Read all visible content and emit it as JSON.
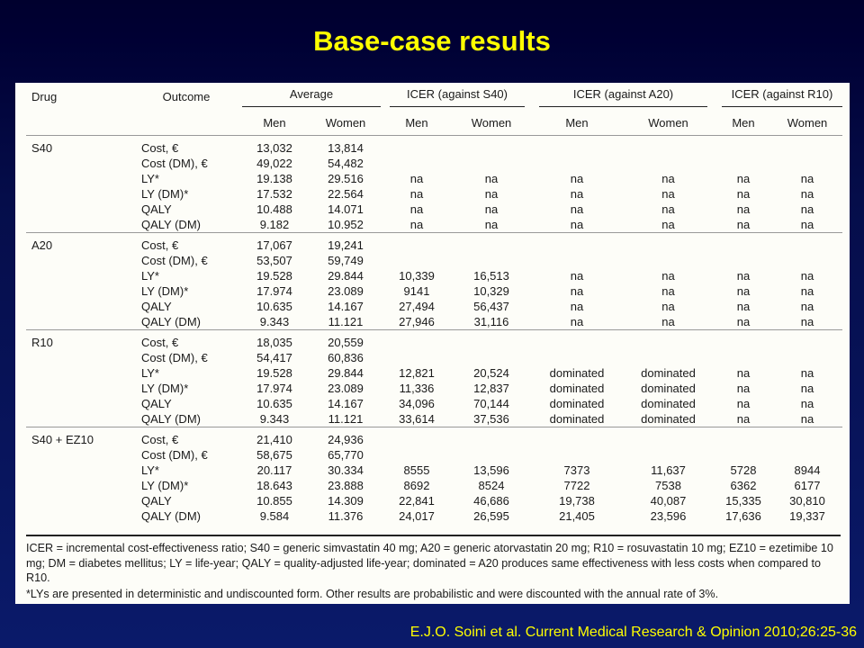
{
  "slide": {
    "title": "Base-case results",
    "citation": "E.J.O. Soini et al. Current Medical Research & Opinion 2010;26:25-36"
  },
  "table": {
    "headers": {
      "drug": "Drug",
      "outcome": "Outcome",
      "average": "Average",
      "icer_s40": "ICER (against S40)",
      "icer_a20": "ICER (against A20)",
      "icer_r10": "ICER (against R10)",
      "men": "Men",
      "women": "Women"
    },
    "groups": [
      {
        "drug": "S40",
        "rows": [
          {
            "outcome": "Cost, €",
            "cells": [
              "13,032",
              "13,814",
              "",
              "",
              "",
              "",
              "",
              ""
            ]
          },
          {
            "outcome": "Cost (DM), €",
            "cells": [
              "49,022",
              "54,482",
              "",
              "",
              "",
              "",
              "",
              ""
            ]
          },
          {
            "outcome": "LY*",
            "cells": [
              "19.138",
              "29.516",
              "na",
              "na",
              "na",
              "na",
              "na",
              "na"
            ]
          },
          {
            "outcome": "LY (DM)*",
            "cells": [
              "17.532",
              "22.564",
              "na",
              "na",
              "na",
              "na",
              "na",
              "na"
            ]
          },
          {
            "outcome": "QALY",
            "cells": [
              "10.488",
              "14.071",
              "na",
              "na",
              "na",
              "na",
              "na",
              "na"
            ]
          },
          {
            "outcome": "QALY (DM)",
            "cells": [
              "9.182",
              "10.952",
              "na",
              "na",
              "na",
              "na",
              "na",
              "na"
            ]
          }
        ]
      },
      {
        "drug": "A20",
        "rows": [
          {
            "outcome": "Cost, €",
            "cells": [
              "17,067",
              "19,241",
              "",
              "",
              "",
              "",
              "",
              ""
            ]
          },
          {
            "outcome": "Cost (DM), €",
            "cells": [
              "53,507",
              "59,749",
              "",
              "",
              "",
              "",
              "",
              ""
            ]
          },
          {
            "outcome": "LY*",
            "cells": [
              "19.528",
              "29.844",
              "10,339",
              "16,513",
              "na",
              "na",
              "na",
              "na"
            ]
          },
          {
            "outcome": "LY (DM)*",
            "cells": [
              "17.974",
              "23.089",
              "9141",
              "10,329",
              "na",
              "na",
              "na",
              "na"
            ]
          },
          {
            "outcome": "QALY",
            "cells": [
              "10.635",
              "14.167",
              "27,494",
              "56,437",
              "na",
              "na",
              "na",
              "na"
            ]
          },
          {
            "outcome": "QALY (DM)",
            "cells": [
              "9.343",
              "11.121",
              "27,946",
              "31,116",
              "na",
              "na",
              "na",
              "na"
            ]
          }
        ]
      },
      {
        "drug": "R10",
        "rows": [
          {
            "outcome": "Cost, €",
            "cells": [
              "18,035",
              "20,559",
              "",
              "",
              "",
              "",
              "",
              ""
            ]
          },
          {
            "outcome": "Cost (DM), €",
            "cells": [
              "54,417",
              "60,836",
              "",
              "",
              "",
              "",
              "",
              ""
            ]
          },
          {
            "outcome": "LY*",
            "cells": [
              "19.528",
              "29.844",
              "12,821",
              "20,524",
              "dominated",
              "dominated",
              "na",
              "na"
            ]
          },
          {
            "outcome": "LY (DM)*",
            "cells": [
              "17.974",
              "23.089",
              "11,336",
              "12,837",
              "dominated",
              "dominated",
              "na",
              "na"
            ]
          },
          {
            "outcome": "QALY",
            "cells": [
              "10.635",
              "14.167",
              "34,096",
              "70,144",
              "dominated",
              "dominated",
              "na",
              "na"
            ]
          },
          {
            "outcome": "QALY (DM)",
            "cells": [
              "9.343",
              "11.121",
              "33,614",
              "37,536",
              "dominated",
              "dominated",
              "na",
              "na"
            ]
          }
        ]
      },
      {
        "drug": "S40 + EZ10",
        "rows": [
          {
            "outcome": "Cost, €",
            "cells": [
              "21,410",
              "24,936",
              "",
              "",
              "",
              "",
              "",
              ""
            ]
          },
          {
            "outcome": "Cost (DM), €",
            "cells": [
              "58,675",
              "65,770",
              "",
              "",
              "",
              "",
              "",
              ""
            ]
          },
          {
            "outcome": "LY*",
            "cells": [
              "20.117",
              "30.334",
              "8555",
              "13,596",
              "7373",
              "11,637",
              "5728",
              "8944"
            ]
          },
          {
            "outcome": "LY (DM)*",
            "cells": [
              "18.643",
              "23.888",
              "8692",
              "8524",
              "7722",
              "7538",
              "6362",
              "6177"
            ]
          },
          {
            "outcome": "QALY",
            "cells": [
              "10.855",
              "14.309",
              "22,841",
              "46,686",
              "19,738",
              "40,087",
              "15,335",
              "30,810"
            ]
          },
          {
            "outcome": "QALY (DM)",
            "cells": [
              "9.584",
              "11.376",
              "24,017",
              "26,595",
              "21,405",
              "23,596",
              "17,636",
              "19,337"
            ]
          }
        ]
      }
    ],
    "footnote": {
      "line1": "ICER = incremental cost-effectiveness ratio; S40 = generic simvastatin 40 mg; A20 = generic atorvastatin 20 mg; R10 = rosuvastatin 10 mg; EZ10 = ezetimibe 10 mg; DM = diabetes mellitus; LY = life-year; QALY = quality-adjusted life-year; dominated = A20 produces same effectiveness with less costs when compared to R10.",
      "line2": "*LYs are presented in deterministic and undiscounted form. Other results are probabilistic and were discounted with the annual rate of 3%."
    }
  }
}
